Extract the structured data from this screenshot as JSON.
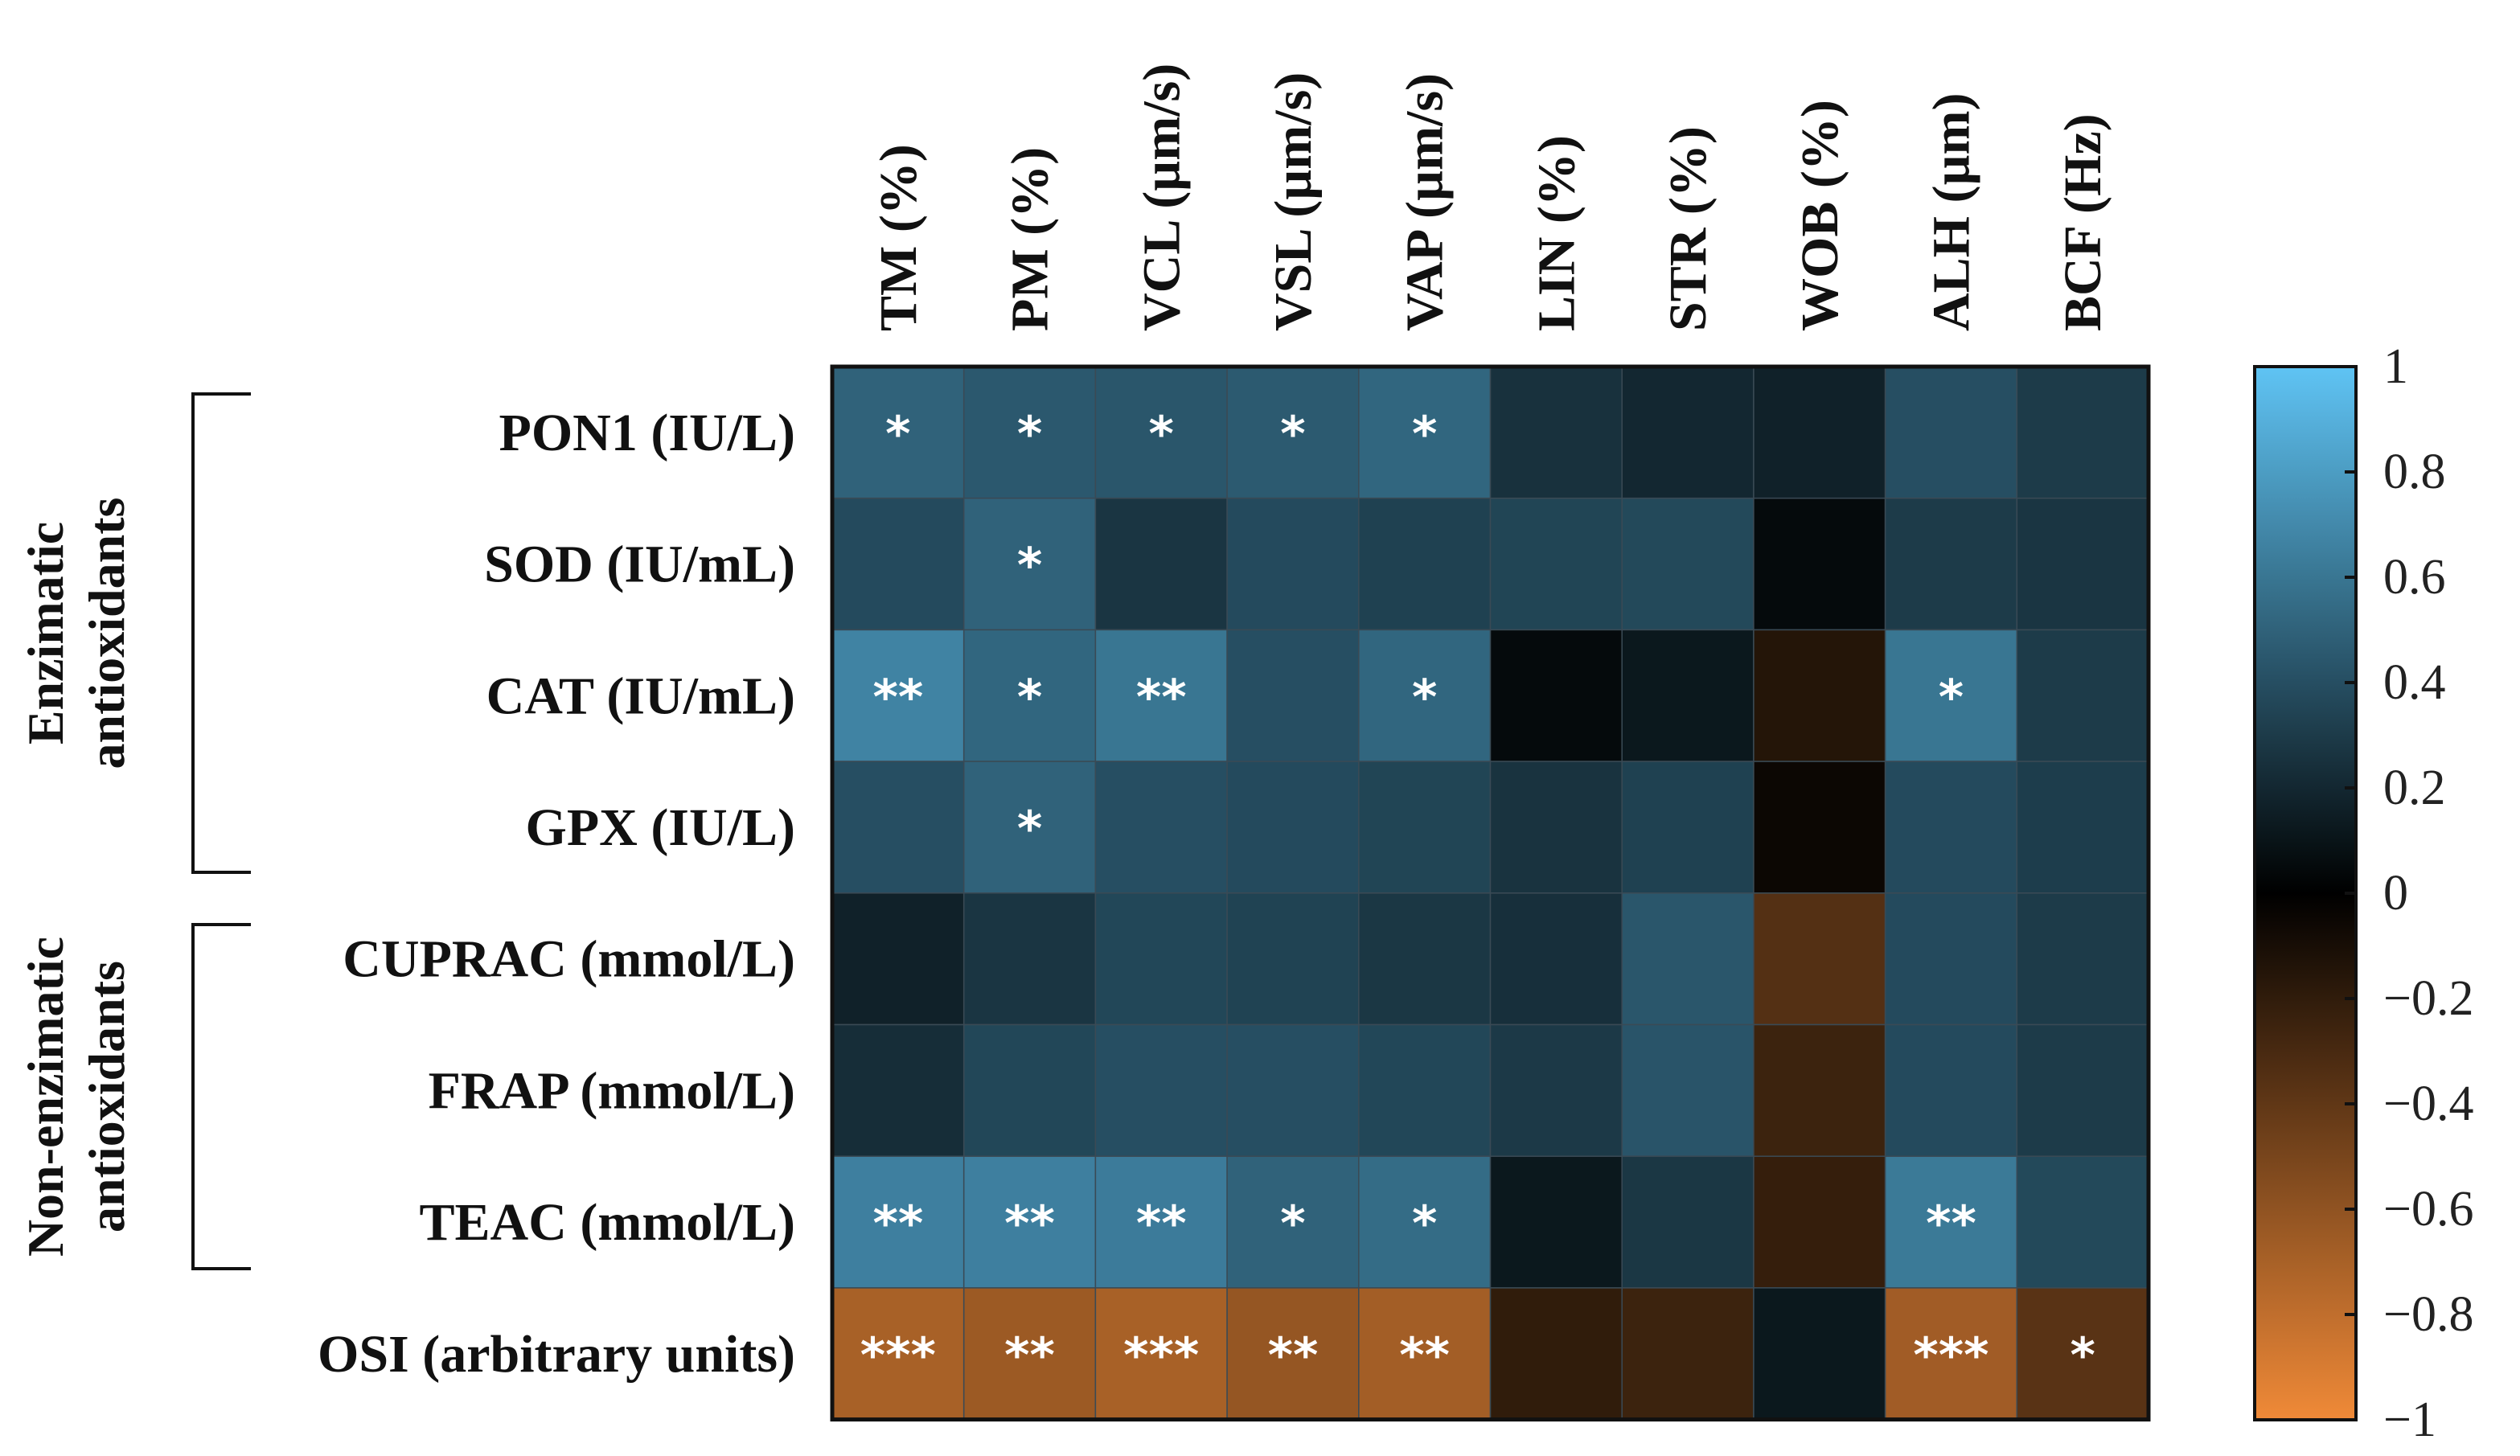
{
  "chart_data": {
    "type": "heatmap",
    "title": "",
    "columns": [
      "TM (%)",
      "PM (%)",
      "VCL (µm/s)",
      "VSL (µm/s)",
      "VAP (µm/s)",
      "LIN (%)",
      "STR (%)",
      "WOB (%)",
      "ALH (µm)",
      "BCF (Hz)"
    ],
    "rows": [
      "PON1 (IU/L)",
      "SOD (IU/mL)",
      "CAT (IU/mL)",
      "GPX (IU/L)",
      "CUPRAC (mmol/L)",
      "FRAP (mmol/L)",
      "TEAC (mmol/L)",
      "OSI (arbitrary units)"
    ],
    "groups": [
      {
        "label_lines": [
          "Enzimatic",
          "antioxidants"
        ],
        "rows": [
          "PON1 (IU/L)",
          "SOD (IU/mL)",
          "CAT (IU/mL)",
          "GPX (IU/L)"
        ]
      },
      {
        "label_lines": [
          "Non-enzimatic",
          "antioxidants"
        ],
        "rows": [
          "CUPRAC (mmol/L)",
          "FRAP (mmol/L)",
          "TEAC (mmol/L)"
        ]
      }
    ],
    "values": [
      [
        0.5,
        0.45,
        0.44,
        0.46,
        0.52,
        0.25,
        0.2,
        0.17,
        0.4,
        0.3
      ],
      [
        0.38,
        0.5,
        0.27,
        0.38,
        0.33,
        0.35,
        0.37,
        0.05,
        0.3,
        0.27
      ],
      [
        0.67,
        0.52,
        0.6,
        0.4,
        0.52,
        0.05,
        0.12,
        -0.15,
        0.6,
        0.3
      ],
      [
        0.4,
        0.5,
        0.4,
        0.38,
        0.35,
        0.26,
        0.33,
        -0.05,
        0.38,
        0.31
      ],
      [
        0.17,
        0.27,
        0.36,
        0.34,
        0.28,
        0.24,
        0.44,
        -0.35,
        0.38,
        0.3
      ],
      [
        0.23,
        0.36,
        0.4,
        0.4,
        0.36,
        0.29,
        0.43,
        -0.25,
        0.38,
        0.3
      ],
      [
        0.65,
        0.65,
        0.63,
        0.5,
        0.55,
        0.12,
        0.28,
        -0.22,
        0.62,
        0.37
      ],
      [
        -0.7,
        -0.65,
        -0.7,
        -0.62,
        -0.68,
        -0.2,
        -0.25,
        0.12,
        -0.67,
        -0.37
      ]
    ],
    "significance": [
      [
        "*",
        "*",
        "*",
        "*",
        "*",
        "",
        "",
        "",
        "",
        ""
      ],
      [
        "",
        "*",
        "",
        "",
        "",
        "",
        "",
        "",
        "",
        ""
      ],
      [
        "**",
        "*",
        "**",
        "",
        "*",
        "",
        "",
        "",
        "*",
        ""
      ],
      [
        "",
        "*",
        "",
        "",
        "",
        "",
        "",
        "",
        "",
        ""
      ],
      [
        "",
        "",
        "",
        "",
        "",
        "",
        "",
        "",
        "",
        ""
      ],
      [
        "",
        "",
        "",
        "",
        "",
        "",
        "",
        "",
        "",
        ""
      ],
      [
        "**",
        "**",
        "**",
        "*",
        "*",
        "",
        "",
        "",
        "**",
        ""
      ],
      [
        "***",
        "**",
        "***",
        "**",
        "**",
        "",
        "",
        "",
        "***",
        "*"
      ]
    ],
    "colorbar": {
      "range": [
        -1,
        1
      ],
      "ticks": [
        1,
        0.8,
        0.6,
        0.4,
        0.2,
        0,
        -0.2,
        -0.4,
        -0.6,
        -0.8,
        -1
      ],
      "tick_labels": [
        "1",
        "0.8",
        "0.6",
        "0.4",
        "0.2",
        "0",
        "−0.2",
        "−0.4",
        "−0.6",
        "−0.8",
        "−1"
      ],
      "colors": {
        "positive_max": "#5fc4f4",
        "zero": "#000000",
        "negative_max": "#f08a38",
        "grid_line": "#3a4a55",
        "border": "#111111"
      }
    }
  }
}
